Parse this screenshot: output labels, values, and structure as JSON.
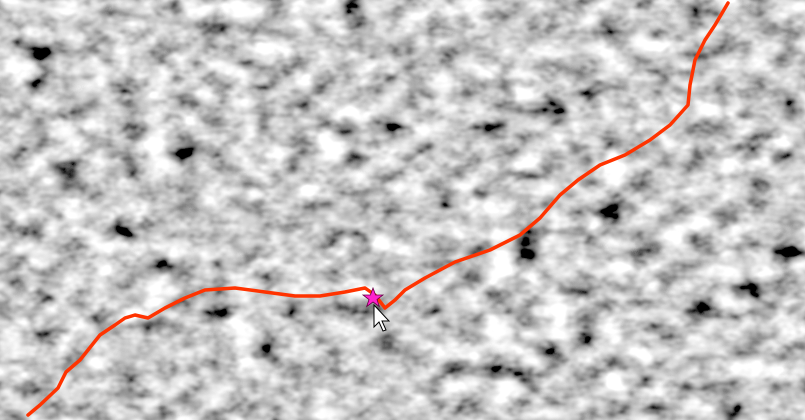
{
  "map": {
    "route_color": "#ff3300",
    "marker_color": "#ff22cc"
  }
}
